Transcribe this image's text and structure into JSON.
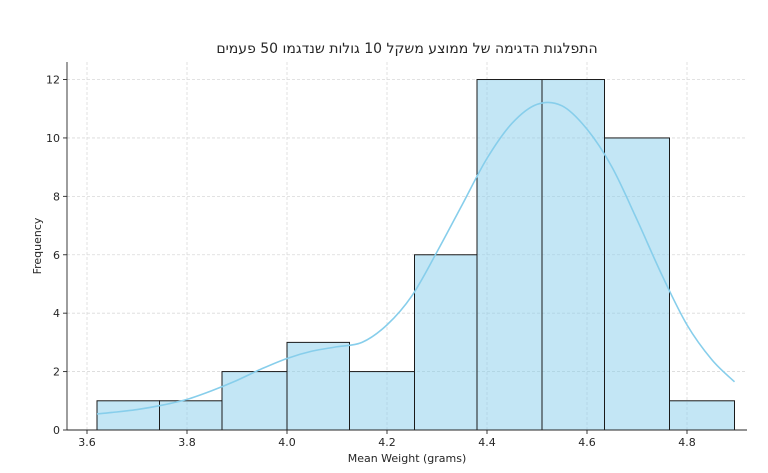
{
  "chart_data": {
    "type": "bar",
    "title": "התפלגות הדגימה של ממוצע משקל 10 גולות שנדגמו 50 פעמים",
    "xlabel": "Mean Weight (grams)",
    "ylabel": "Frequency",
    "xlim": [
      3.56,
      4.92
    ],
    "ylim": [
      0,
      12.6
    ],
    "grid": true,
    "bin_edges": [
      3.62,
      3.745,
      3.87,
      4.0,
      4.125,
      4.255,
      4.38,
      4.51,
      4.635,
      4.765,
      4.895
    ],
    "values": [
      1,
      1,
      2,
      3,
      2,
      6,
      12,
      12,
      10,
      1
    ],
    "x_ticks": [
      3.6,
      3.8,
      4.0,
      4.2,
      4.4,
      4.6,
      4.8
    ],
    "x_tick_labels": [
      "3.6",
      "3.8",
      "4.0",
      "4.2",
      "4.4",
      "4.6",
      "4.8"
    ],
    "y_ticks": [
      0,
      2,
      4,
      6,
      8,
      10,
      12
    ],
    "y_tick_labels": [
      "0",
      "2",
      "4",
      "6",
      "8",
      "10",
      "12"
    ],
    "kde_curve": {
      "x": [
        3.62,
        3.65,
        3.7,
        3.75,
        3.8,
        3.85,
        3.9,
        3.95,
        4.0,
        4.05,
        4.1,
        4.15,
        4.2,
        4.25,
        4.3,
        4.35,
        4.4,
        4.45,
        4.5,
        4.55,
        4.6,
        4.65,
        4.7,
        4.75,
        4.8,
        4.85,
        4.895
      ],
      "y": [
        0.55,
        0.6,
        0.7,
        0.85,
        1.05,
        1.35,
        1.7,
        2.1,
        2.45,
        2.7,
        2.85,
        3.0,
        3.6,
        4.6,
        6.1,
        7.7,
        9.3,
        10.5,
        11.15,
        11.1,
        10.3,
        9.0,
        7.2,
        5.3,
        3.6,
        2.4,
        1.65
      ]
    },
    "colors": {
      "bar": "#87ceeb",
      "edge": "#1a1a1a",
      "kde": "#87ceeb"
    }
  }
}
